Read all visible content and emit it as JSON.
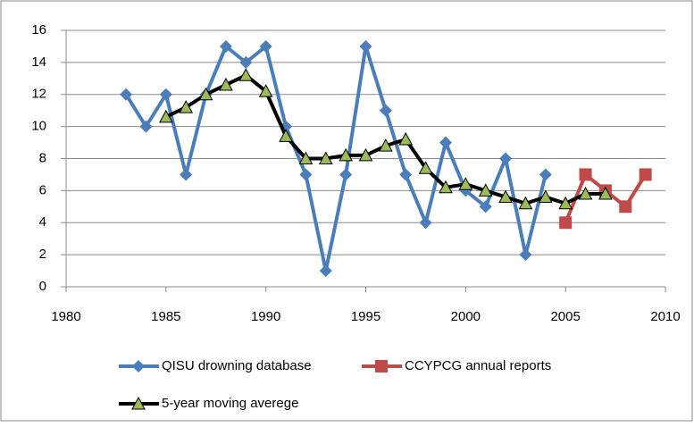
{
  "chart_data": {
    "type": "line",
    "x": [
      1983,
      1984,
      1985,
      1986,
      1987,
      1988,
      1989,
      1990,
      1991,
      1992,
      1993,
      1994,
      1995,
      1996,
      1997,
      1998,
      1999,
      2000,
      2001,
      2002,
      2003,
      2004,
      2005,
      2006,
      2007,
      2008,
      2009
    ],
    "series": [
      {
        "name": "QISU drowning database",
        "color": "#4a7ebb",
        "marker": "diamond",
        "values": [
          12,
          10,
          12,
          7,
          12,
          15,
          14,
          15,
          10,
          7,
          1,
          7,
          15,
          11,
          7,
          4,
          9,
          6,
          5,
          8,
          2,
          7,
          null,
          null,
          null,
          null,
          null
        ]
      },
      {
        "name": "CCYPCG annual reports",
        "color": "#be4b48",
        "marker": "square",
        "values": [
          null,
          null,
          null,
          null,
          null,
          null,
          null,
          null,
          null,
          null,
          null,
          null,
          null,
          null,
          null,
          null,
          null,
          null,
          null,
          null,
          null,
          null,
          4,
          7,
          6,
          5,
          7
        ]
      },
      {
        "name": "5-year moving averege",
        "color": "#000000",
        "marker": "triangle",
        "marker_color": "#9bbb59",
        "values": [
          null,
          null,
          10.6,
          11.2,
          12,
          12.6,
          13.2,
          12.2,
          9.4,
          8,
          8,
          8.2,
          8.2,
          8.8,
          9.2,
          7.4,
          6.2,
          6.4,
          6,
          5.6,
          5.2,
          5.6,
          5.2,
          5.8,
          5.8,
          null,
          null
        ]
      }
    ],
    "xlim": [
      1980,
      2010
    ],
    "xticks": [
      1980,
      1985,
      1990,
      1995,
      2000,
      2005,
      2010
    ],
    "ylim": [
      0,
      16
    ],
    "yticks": [
      0,
      2,
      4,
      6,
      8,
      10,
      12,
      14,
      16
    ],
    "grid": true,
    "legend": "bottom"
  }
}
